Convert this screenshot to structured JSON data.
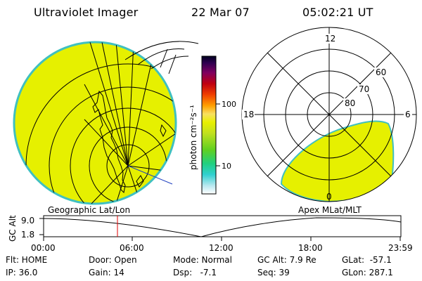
{
  "header": {
    "instrument": "Ultraviolet Imager",
    "date": "22 Mar 07",
    "time": "05:02:21 UT"
  },
  "colorbar": {
    "unit_label": "photon cm⁻²s⁻¹",
    "ticks": [
      "100",
      "10"
    ]
  },
  "polar_plot": {
    "mlt_labels": [
      "12",
      "18",
      "6",
      "0"
    ],
    "mlat_labels": [
      "60",
      "70",
      "80"
    ]
  },
  "timeline": {
    "left_label": "Geographic Lat/Lon",
    "right_label": "Apex MLat/MLT",
    "y_axis_label": "GC Alt",
    "y_ticks": [
      "9.0",
      "1.8"
    ],
    "x_ticks": [
      "00:00",
      "06:00",
      "12:00",
      "18:00",
      "23:59"
    ],
    "marker_color": "#e00000"
  },
  "status": {
    "flt": "Flt: HOME",
    "ip": "IP: 36.0",
    "door": "Door: Open",
    "gain": "Gain: 14",
    "mode": "Mode: Normal",
    "dsp": "Dsp:   -7.1",
    "gc_alt": "GC Alt: 7.9 Re",
    "seq": "Seq: 39",
    "glat": "GLat:  -57.1",
    "glon": "GLon: 287.1"
  },
  "colors": {
    "emission": "#e6f000",
    "rim": "#40c0c0"
  }
}
